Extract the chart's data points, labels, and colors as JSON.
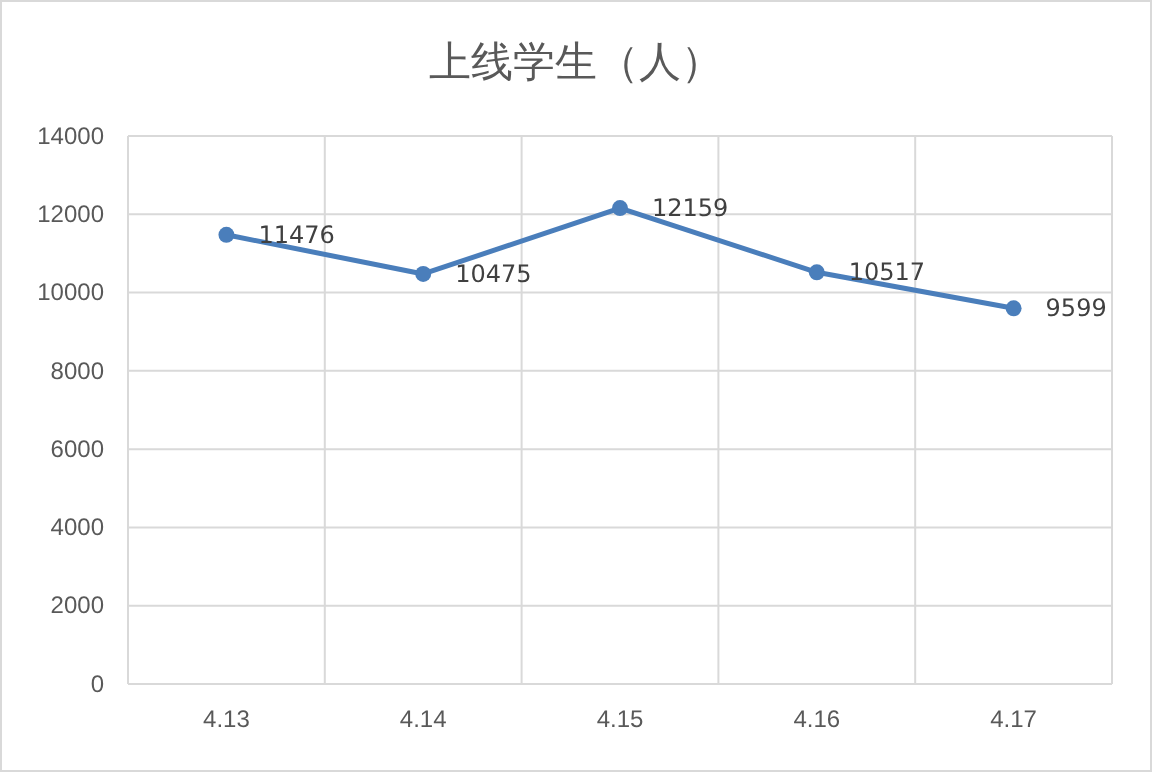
{
  "chart_data": {
    "type": "line",
    "title": "上线学生（人）",
    "categories": [
      "4.13",
      "4.14",
      "4.15",
      "4.16",
      "4.17"
    ],
    "series": [
      {
        "color": "#4a7ebb",
        "values": [
          11476,
          10475,
          12159,
          10517,
          9599
        ]
      }
    ],
    "ylim": [
      0,
      14000
    ],
    "yticks": [
      0,
      2000,
      4000,
      6000,
      8000,
      10000,
      12000,
      14000
    ],
    "grid": true,
    "data_labels": true,
    "marker": "circle",
    "line_style": "solid",
    "legend": false
  }
}
